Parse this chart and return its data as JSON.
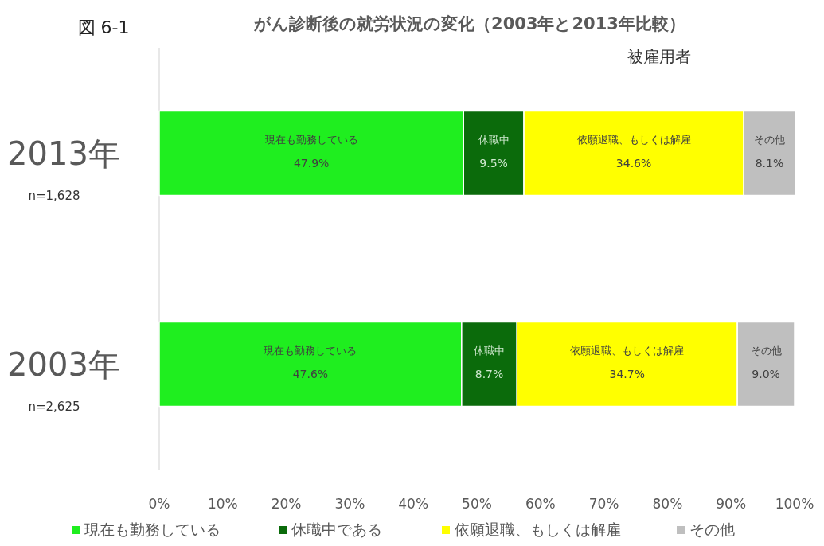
{
  "chart_data": {
    "type": "bar",
    "orientation": "horizontal",
    "stacked": true,
    "title": "がん診断後の就労状況の変化（2003年と2013年比較）",
    "subtitle": "被雇用者",
    "categories": [
      "2013年",
      "2003年"
    ],
    "series": [
      {
        "name": "現在も勤務している",
        "color": "#1fee1f",
        "values": [
          47.9,
          47.6
        ],
        "value_labels": [
          "47.9%",
          "47.6%"
        ]
      },
      {
        "name": "休職中である",
        "color": "#0b6b0b",
        "values": [
          9.5,
          8.7
        ],
        "value_labels": [
          "9.5%",
          "8.7%"
        ]
      },
      {
        "name": "依願退職、もしくは解雇",
        "color": "#ffff00",
        "values": [
          34.6,
          34.7
        ],
        "value_labels": [
          "34.6%",
          "34.7%"
        ]
      },
      {
        "name": "その他",
        "color": "#bfbfbf",
        "values": [
          8.1,
          9.0
        ],
        "value_labels": [
          "8.1%",
          "9.0%"
        ]
      }
    ],
    "xlim": [
      0,
      100
    ],
    "xticks": [
      {
        "value": 0,
        "label": "0%"
      },
      {
        "value": 10,
        "label": "10%"
      },
      {
        "value": 20,
        "label": "20%"
      },
      {
        "value": 30,
        "label": "30%"
      },
      {
        "value": 40,
        "label": "40%"
      },
      {
        "value": 50,
        "label": "50%"
      },
      {
        "value": 60,
        "label": "60%"
      },
      {
        "value": 70,
        "label": "70%"
      },
      {
        "value": 80,
        "label": "80%"
      },
      {
        "value": 90,
        "label": "90%"
      },
      {
        "value": 100,
        "label": "100%"
      }
    ],
    "legend": "bottom",
    "annotations": [
      "図 6-1",
      "n=1,628",
      "n=2,625",
      "現在も勤務している",
      "休職中",
      "依願退職、もしくは解雇",
      "その他",
      "現在も勤務している",
      "休職中",
      "依願退職、もしくは解雇",
      "その他"
    ]
  }
}
